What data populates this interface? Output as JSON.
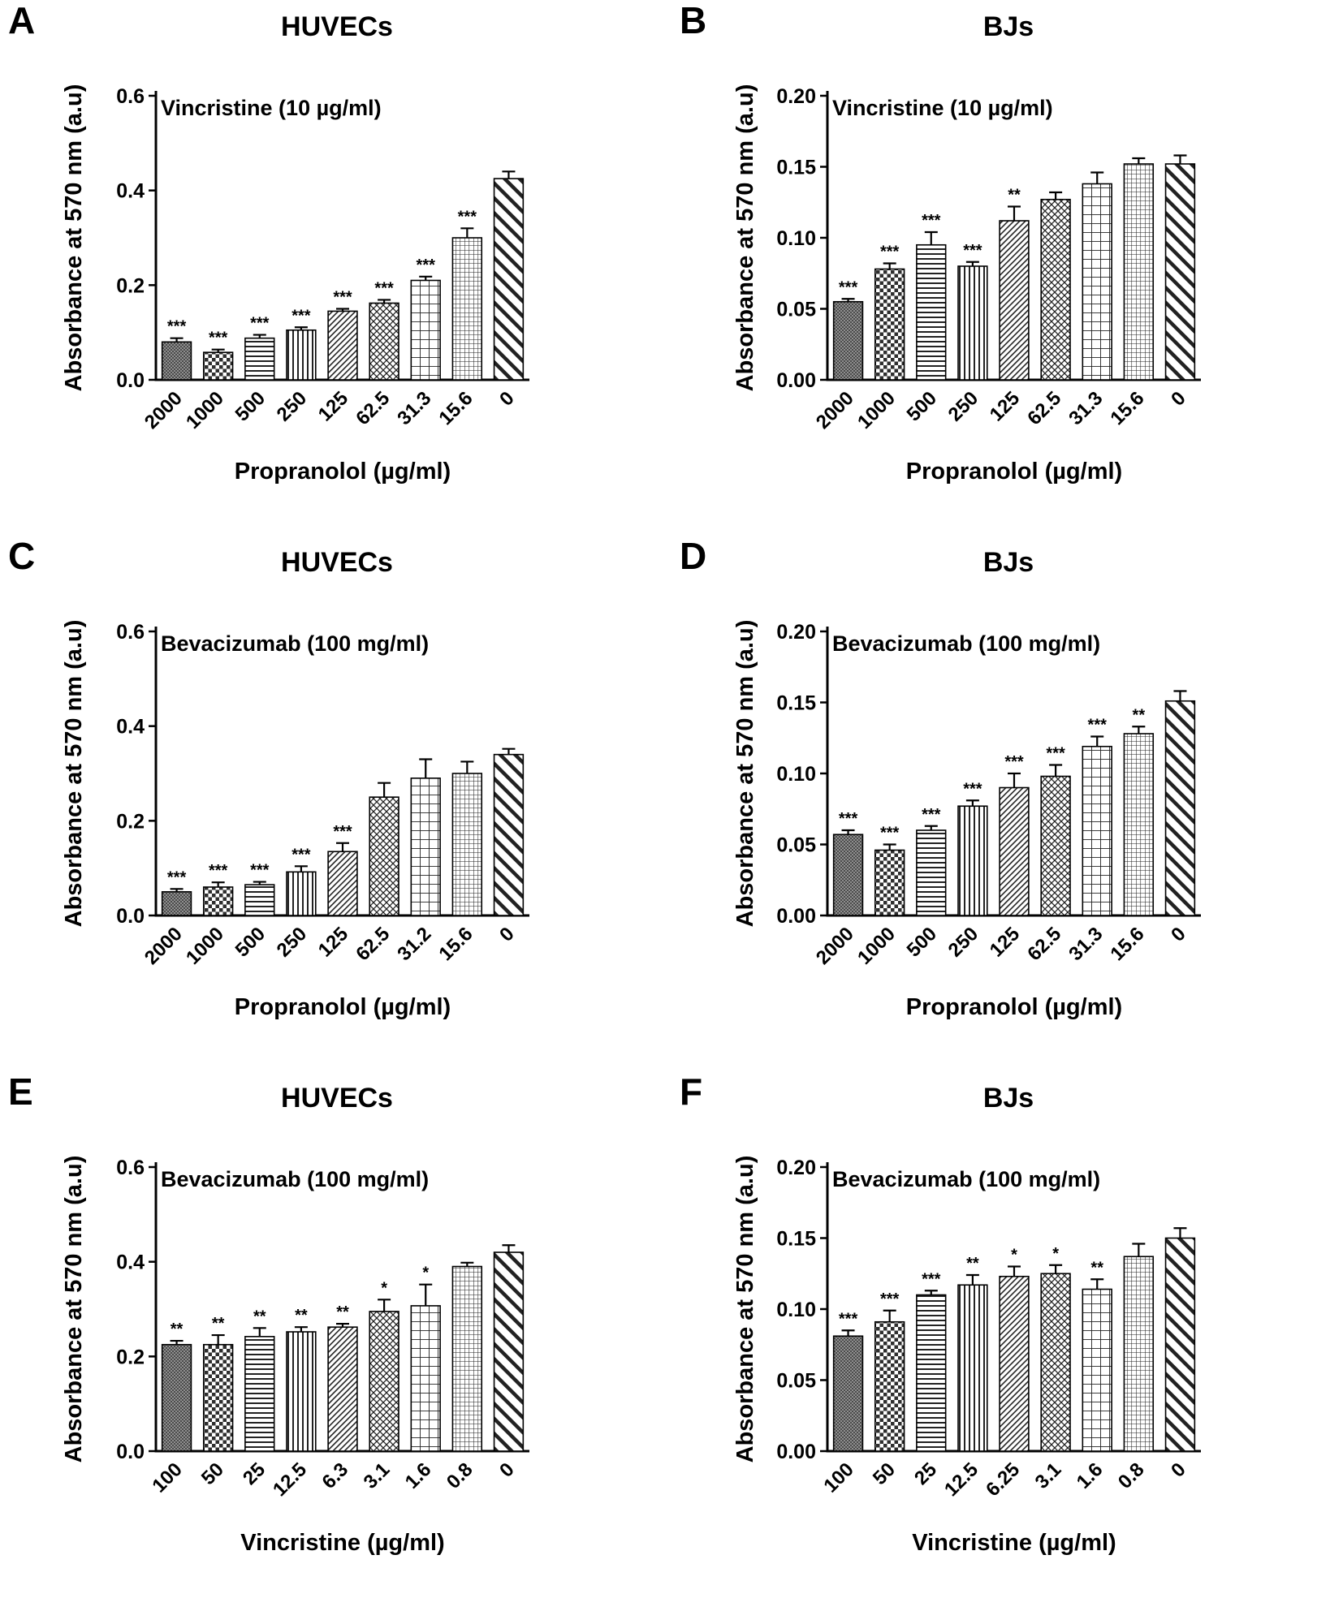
{
  "figure": {
    "bar_pattern_sequence": [
      "dark-checker",
      "checkerboard",
      "horizontal-lines",
      "vertical-lines",
      "fine-diagonal-lines",
      "diagonal-crosshatch",
      "grid",
      "fine-grid",
      "wide-diagonal-stripes"
    ],
    "axis_color": "#000000",
    "background_color": "#ffffff"
  },
  "chart_data": [
    {
      "id": "A",
      "type": "bar",
      "panel_letter": "A",
      "title": "HUVECs",
      "subtitle": "Vincristine (10 µg/ml)",
      "xlabel": "Propranolol (µg/ml)",
      "ylabel": "Absorbance at 570 nm (a.u)",
      "ylim": [
        0,
        0.6
      ],
      "ytick_labels": [
        "0.0",
        "0.2",
        "0.4",
        "0.6"
      ],
      "categories": [
        "2000",
        "1000",
        "500",
        "250",
        "125",
        "62.5",
        "31.3",
        "15.6",
        "0"
      ],
      "values": [
        0.08,
        0.058,
        0.088,
        0.105,
        0.145,
        0.162,
        0.21,
        0.3,
        0.425
      ],
      "errors": [
        0.008,
        0.006,
        0.007,
        0.006,
        0.005,
        0.007,
        0.008,
        0.02,
        0.015
      ],
      "significance": [
        "***",
        "***",
        "***",
        "***",
        "***",
        "***",
        "***",
        "***",
        ""
      ]
    },
    {
      "id": "B",
      "type": "bar",
      "panel_letter": "B",
      "title": "BJs",
      "subtitle": "Vincristine (10 µg/ml)",
      "xlabel": "Propranolol (µg/ml)",
      "ylabel": "Absorbance at 570 nm (a.u)",
      "ylim": [
        0,
        0.2
      ],
      "ytick_labels": [
        "0.00",
        "0.05",
        "0.10",
        "0.15",
        "0.20"
      ],
      "categories": [
        "2000",
        "1000",
        "500",
        "250",
        "125",
        "62.5",
        "31.3",
        "15.6",
        "0"
      ],
      "values": [
        0.055,
        0.078,
        0.095,
        0.08,
        0.112,
        0.127,
        0.138,
        0.152,
        0.152
      ],
      "errors": [
        0.002,
        0.004,
        0.009,
        0.003,
        0.01,
        0.005,
        0.008,
        0.004,
        0.006
      ],
      "significance": [
        "***",
        "***",
        "***",
        "***",
        "**",
        "",
        "",
        "",
        ""
      ]
    },
    {
      "id": "C",
      "type": "bar",
      "panel_letter": "C",
      "title": "HUVECs",
      "subtitle": "Bevacizumab (100 mg/ml)",
      "xlabel": "Propranolol (µg/ml)",
      "ylabel": "Absorbance at 570 nm (a.u)",
      "ylim": [
        0,
        0.6
      ],
      "ytick_labels": [
        "0.0",
        "0.2",
        "0.4",
        "0.6"
      ],
      "categories": [
        "2000",
        "1000",
        "500",
        "250",
        "125",
        "62.5",
        "31.2",
        "15.6",
        "0"
      ],
      "values": [
        0.05,
        0.06,
        0.065,
        0.092,
        0.135,
        0.25,
        0.29,
        0.3,
        0.34
      ],
      "errors": [
        0.006,
        0.01,
        0.006,
        0.012,
        0.018,
        0.03,
        0.04,
        0.025,
        0.012
      ],
      "significance": [
        "***",
        "***",
        "***",
        "***",
        "***",
        "",
        "",
        "",
        ""
      ]
    },
    {
      "id": "D",
      "type": "bar",
      "panel_letter": "D",
      "title": "BJs",
      "subtitle": "Bevacizumab (100 mg/ml)",
      "xlabel": "Propranolol (µg/ml)",
      "ylabel": "Absorbance at 570 nm (a.u)",
      "ylim": [
        0,
        0.2
      ],
      "ytick_labels": [
        "0.00",
        "0.05",
        "0.10",
        "0.15",
        "0.20"
      ],
      "categories": [
        "2000",
        "1000",
        "500",
        "250",
        "125",
        "62.5",
        "31.3",
        "15.6",
        "0"
      ],
      "values": [
        0.057,
        0.046,
        0.06,
        0.077,
        0.09,
        0.098,
        0.119,
        0.128,
        0.151
      ],
      "errors": [
        0.003,
        0.004,
        0.003,
        0.004,
        0.01,
        0.008,
        0.007,
        0.005,
        0.007
      ],
      "significance": [
        "***",
        "***",
        "***",
        "***",
        "***",
        "***",
        "***",
        "**",
        ""
      ]
    },
    {
      "id": "E",
      "type": "bar",
      "panel_letter": "E",
      "title": "HUVECs",
      "subtitle": "Bevacizumab (100 mg/ml)",
      "xlabel": "Vincristine (µg/ml)",
      "ylabel": "Absorbance at 570 nm (a.u)",
      "ylim": [
        0,
        0.6
      ],
      "ytick_labels": [
        "0.0",
        "0.2",
        "0.4",
        "0.6"
      ],
      "categories": [
        "100",
        "50",
        "25",
        "12.5",
        "6.3",
        "3.1",
        "1.6",
        "0.8",
        "0"
      ],
      "values": [
        0.225,
        0.225,
        0.242,
        0.252,
        0.262,
        0.295,
        0.307,
        0.39,
        0.42
      ],
      "errors": [
        0.008,
        0.02,
        0.018,
        0.01,
        0.007,
        0.025,
        0.045,
        0.008,
        0.015
      ],
      "significance": [
        "**",
        "**",
        "**",
        "**",
        "**",
        "*",
        "*",
        "",
        ""
      ]
    },
    {
      "id": "F",
      "type": "bar",
      "panel_letter": "F",
      "title": "BJs",
      "subtitle": "Bevacizumab (100 mg/ml)",
      "xlabel": "Vincristine (µg/ml)",
      "ylabel": "Absorbance at 570 nm (a.u)",
      "ylim": [
        0,
        0.2
      ],
      "ytick_labels": [
        "0.00",
        "0.05",
        "0.10",
        "0.15",
        "0.20"
      ],
      "categories": [
        "100",
        "50",
        "25",
        "12.5",
        "6.25",
        "3.1",
        "1.6",
        "0.8",
        "0"
      ],
      "values": [
        0.081,
        0.091,
        0.11,
        0.117,
        0.123,
        0.125,
        0.114,
        0.137,
        0.15
      ],
      "errors": [
        0.004,
        0.008,
        0.003,
        0.007,
        0.007,
        0.006,
        0.007,
        0.009,
        0.007
      ],
      "significance": [
        "***",
        "***",
        "***",
        "**",
        "*",
        "*",
        "**",
        "",
        ""
      ]
    }
  ]
}
